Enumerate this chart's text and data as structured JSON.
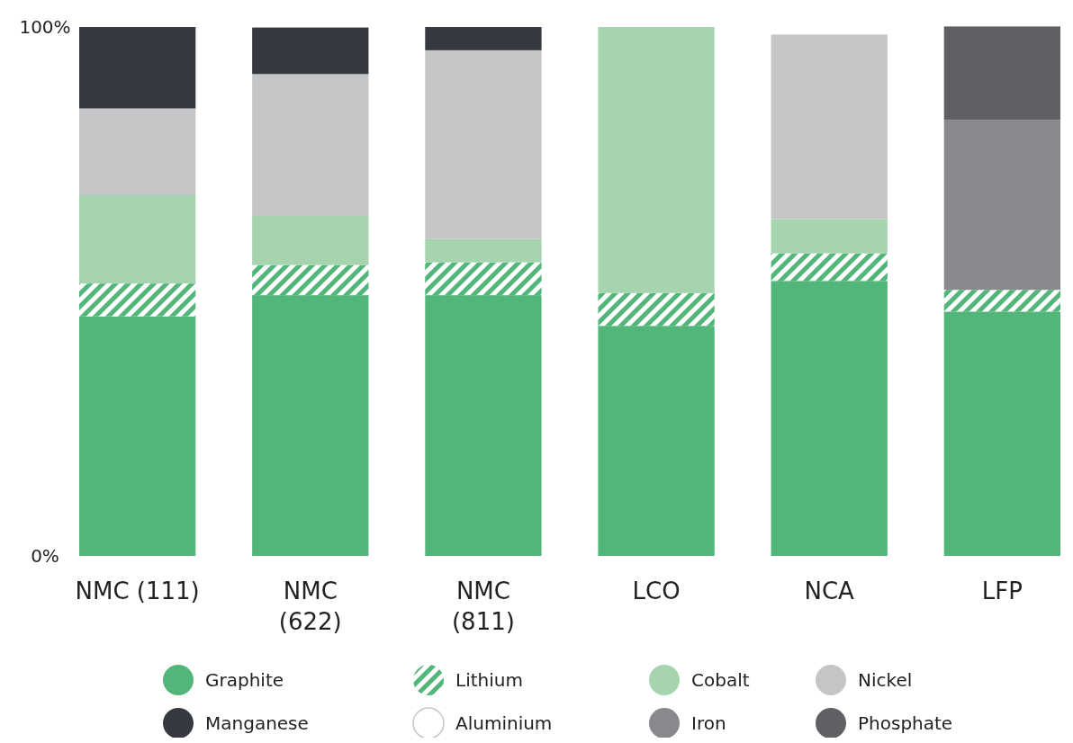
{
  "chart_data": {
    "type": "bar",
    "stacked": true,
    "categories": [
      "NMC (111)",
      "NMC\n(622)",
      "NMC\n(811)",
      "LCO",
      "NCA",
      "LFP"
    ],
    "ylim": [
      0,
      100
    ],
    "yticks": [
      {
        "value": 0,
        "label": "0%"
      },
      {
        "value": 100,
        "label": "100%"
      }
    ],
    "grid": false,
    "legend": "bottom",
    "series": [
      {
        "name": "Graphite",
        "color": "#52b57a",
        "values": [
          45.3,
          49.3,
          49.3,
          43.5,
          52.0,
          46.2
        ]
      },
      {
        "name": "Lithium",
        "color": "#52b57a",
        "values": [
          6.2,
          5.7,
          6.2,
          6.2,
          5.2,
          4.1
        ]
      },
      {
        "name": "Cobalt",
        "color": "#a6d4af",
        "values": [
          16.7,
          9.3,
          4.4,
          50.3,
          6.5,
          null
        ]
      },
      {
        "name": "Nickel",
        "color": "#c4c5c7",
        "values": [
          16.4,
          26.8,
          35.7,
          null,
          34.9,
          null
        ]
      },
      {
        "name": "Manganese",
        "color": "#363940",
        "values": [
          15.4,
          8.8,
          4.4,
          null,
          null,
          null
        ]
      },
      {
        "name": "Aluminium",
        "color": "#ffffff",
        "values": [
          null,
          null,
          null,
          null,
          1.3,
          null
        ]
      },
      {
        "name": "Iron",
        "color": "#88898c",
        "values": [
          null,
          null,
          null,
          null,
          null,
          32.1
        ]
      },
      {
        "name": "Phosphate",
        "color": "#5e6064",
        "values": [
          null,
          null,
          null,
          null,
          null,
          17.7
        ]
      }
    ]
  }
}
